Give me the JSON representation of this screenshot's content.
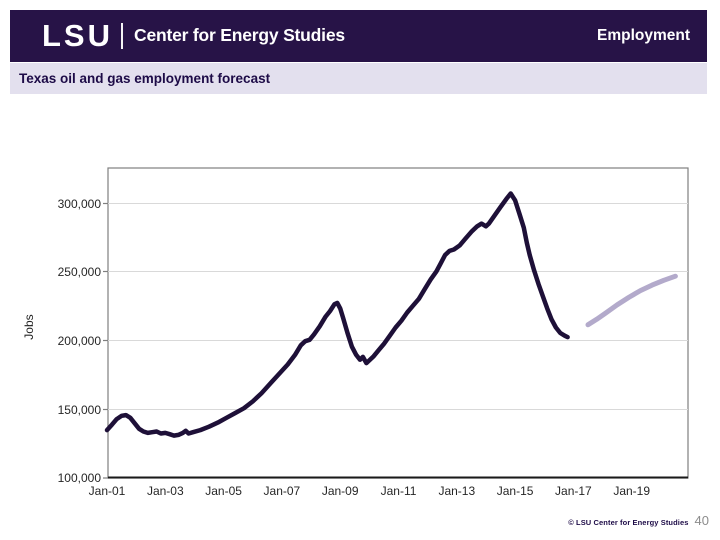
{
  "header": {
    "logo": "LSU",
    "brand": "Center for Energy Studies",
    "section": "Employment"
  },
  "title_bar": {
    "title": "Texas oil and gas employment forecast"
  },
  "footer": {
    "credit": "© LSU Center for Energy Studies",
    "page_number": "40"
  },
  "colors": {
    "header_bg": "#271347",
    "title_band_bg": "#E3E0EE",
    "title_text": "#1D0B47",
    "historical_line": "#1E1038",
    "forecast_line": "#B3AACB",
    "gridline": "#D9D9D9",
    "plot_border": "#7F7F7F",
    "bottom_axis": "#1A1A1A",
    "page_number_text": "#8C8C8C"
  },
  "chart_data": {
    "type": "line",
    "title": "Texas oil and gas employment forecast",
    "xlabel": "",
    "ylabel": "Jobs",
    "x_tick_labels": [
      "Jan-01",
      "Jan-03",
      "Jan-05",
      "Jan-07",
      "Jan-09",
      "Jan-11",
      "Jan-13",
      "Jan-15",
      "Jan-17",
      "Jan-19"
    ],
    "y_tick_labels": [
      "300,000",
      "250,000",
      "200,000",
      "150,000",
      "100,000"
    ],
    "y_ticks": [
      300000,
      250000,
      200000,
      150000,
      100000
    ],
    "ylim": [
      100000,
      326000
    ],
    "x_range_decimal_years": [
      2001.0,
      2020.9
    ],
    "grid": "horizontal",
    "legend": "none",
    "series": [
      {
        "name": "historical employment",
        "color": "#1E1038",
        "stroke_width": 4.5,
        "points": [
          [
            2001.0,
            135000
          ],
          [
            2001.17,
            139000
          ],
          [
            2001.33,
            143000
          ],
          [
            2001.5,
            145500
          ],
          [
            2001.65,
            146000
          ],
          [
            2001.8,
            144000
          ],
          [
            2001.95,
            140000
          ],
          [
            2002.1,
            136000
          ],
          [
            2002.25,
            134000
          ],
          [
            2002.4,
            133000
          ],
          [
            2002.55,
            133500
          ],
          [
            2002.7,
            134000
          ],
          [
            2002.85,
            132500
          ],
          [
            2003.0,
            133000
          ],
          [
            2003.15,
            132000
          ],
          [
            2003.3,
            131000
          ],
          [
            2003.45,
            131500
          ],
          [
            2003.6,
            133000
          ],
          [
            2003.7,
            134500
          ],
          [
            2003.8,
            132500
          ],
          [
            2003.95,
            133500
          ],
          [
            2004.2,
            135000
          ],
          [
            2004.5,
            137500
          ],
          [
            2004.8,
            140500
          ],
          [
            2005.1,
            144000
          ],
          [
            2005.4,
            147500
          ],
          [
            2005.7,
            151000
          ],
          [
            2006.0,
            156000
          ],
          [
            2006.3,
            162000
          ],
          [
            2006.6,
            169000
          ],
          [
            2006.9,
            176000
          ],
          [
            2007.2,
            183000
          ],
          [
            2007.45,
            190000
          ],
          [
            2007.65,
            197000
          ],
          [
            2007.8,
            200000
          ],
          [
            2007.95,
            201000
          ],
          [
            2008.1,
            205000
          ],
          [
            2008.3,
            211000
          ],
          [
            2008.5,
            218000
          ],
          [
            2008.65,
            222000
          ],
          [
            2008.8,
            227000
          ],
          [
            2008.9,
            228000
          ],
          [
            2009.0,
            224000
          ],
          [
            2009.1,
            217000
          ],
          [
            2009.25,
            206000
          ],
          [
            2009.4,
            196000
          ],
          [
            2009.55,
            190000
          ],
          [
            2009.68,
            186500
          ],
          [
            2009.78,
            188500
          ],
          [
            2009.9,
            184000
          ],
          [
            2010.0,
            186000
          ],
          [
            2010.15,
            189000
          ],
          [
            2010.3,
            193000
          ],
          [
            2010.5,
            198000
          ],
          [
            2010.7,
            204000
          ],
          [
            2010.9,
            210000
          ],
          [
            2011.1,
            215000
          ],
          [
            2011.3,
            221000
          ],
          [
            2011.5,
            226000
          ],
          [
            2011.7,
            231000
          ],
          [
            2011.9,
            238000
          ],
          [
            2012.1,
            245000
          ],
          [
            2012.3,
            251000
          ],
          [
            2012.45,
            257000
          ],
          [
            2012.6,
            263000
          ],
          [
            2012.75,
            266000
          ],
          [
            2012.9,
            267000
          ],
          [
            2013.1,
            270000
          ],
          [
            2013.3,
            275000
          ],
          [
            2013.5,
            280000
          ],
          [
            2013.7,
            284000
          ],
          [
            2013.85,
            286000
          ],
          [
            2014.0,
            284000
          ],
          [
            2014.1,
            286000
          ],
          [
            2014.3,
            292000
          ],
          [
            2014.5,
            298000
          ],
          [
            2014.7,
            304000
          ],
          [
            2014.85,
            308000
          ],
          [
            2015.0,
            303000
          ],
          [
            2015.15,
            293000
          ],
          [
            2015.3,
            283000
          ],
          [
            2015.4,
            272000
          ],
          [
            2015.5,
            263000
          ],
          [
            2015.65,
            252000
          ],
          [
            2015.8,
            242000
          ],
          [
            2015.95,
            233000
          ],
          [
            2016.1,
            224000
          ],
          [
            2016.25,
            216000
          ],
          [
            2016.4,
            210000
          ],
          [
            2016.55,
            206000
          ],
          [
            2016.7,
            204000
          ],
          [
            2016.8,
            203000
          ]
        ]
      },
      {
        "name": "forecast employment",
        "color": "#B3AACB",
        "stroke_width": 5,
        "points": [
          [
            2017.5,
            212000
          ],
          [
            2017.8,
            216000
          ],
          [
            2018.1,
            220500
          ],
          [
            2018.5,
            226500
          ],
          [
            2018.9,
            232000
          ],
          [
            2019.3,
            237000
          ],
          [
            2019.7,
            241000
          ],
          [
            2020.1,
            244500
          ],
          [
            2020.5,
            247500
          ]
        ]
      }
    ]
  }
}
